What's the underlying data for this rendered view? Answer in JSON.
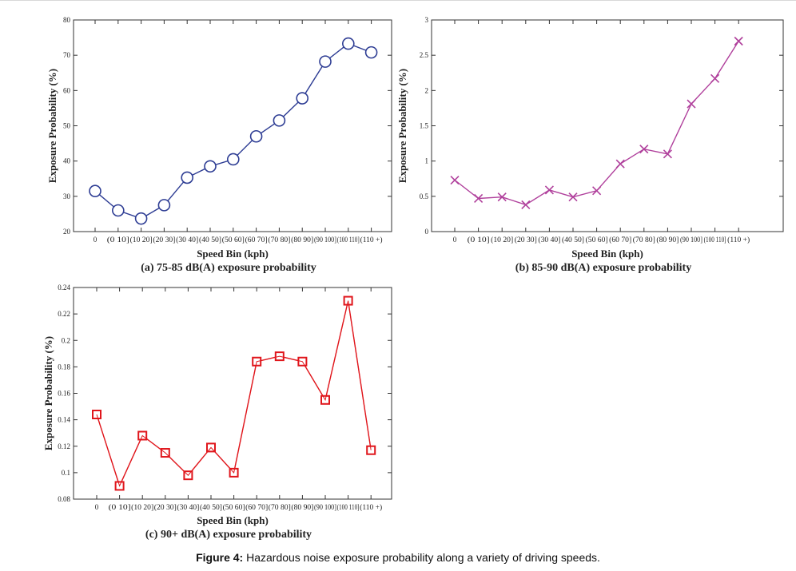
{
  "figure": {
    "caption_label": "Figure 4:",
    "caption_text": " Hazardous noise exposure probability along a variety of driving speeds."
  },
  "chart_data": [
    {
      "type": "line",
      "subcaption": "(a) 75-85 dB(A) exposure probability",
      "xlabel": "Speed Bin (kph)",
      "ylabel": "Exposure Probability (%)",
      "categories": [
        "0",
        "(0 10]",
        "(10 20]",
        "(20 30]",
        "(30 40]",
        "(40 50]",
        "(50 60]",
        "(60 70]",
        "(70 80]",
        "(80 90]",
        "(90 100]",
        "(100 110]",
        "(110 +)"
      ],
      "values": [
        31.5,
        26,
        23.7,
        27.5,
        35.3,
        38.5,
        40.5,
        47,
        51.5,
        57.8,
        68.2,
        73.3,
        70.8
      ],
      "ylim": [
        20,
        80
      ],
      "yticks": [
        "20",
        "30",
        "40",
        "50",
        "60",
        "70",
        "80"
      ],
      "ytick_values": [
        20,
        30,
        40,
        50,
        60,
        70,
        80
      ],
      "marker": "circle",
      "color": "#2e3d94"
    },
    {
      "type": "line",
      "subcaption": "(b) 85-90 dB(A) exposure probability",
      "xlabel": "Speed Bin (kph)",
      "ylabel": "Exposure Probability (%)",
      "categories": [
        "0",
        "(0 10]",
        "(10 20]",
        "(20 30]",
        "(30 40]",
        "(40 50]",
        "(50 60]",
        "(60 70]",
        "(70 80]",
        "(80 90]",
        "(90 100]",
        "(100 110]",
        "(110 +)"
      ],
      "values": [
        0.73,
        0.47,
        0.49,
        0.38,
        0.59,
        0.49,
        0.58,
        0.96,
        1.17,
        1.1,
        1.81,
        2.17,
        2.7
      ],
      "ylim": [
        0,
        3
      ],
      "yticks": [
        "0",
        "0.5",
        "1",
        "1.5",
        "2",
        "2.5",
        "3"
      ],
      "ytick_values": [
        0,
        0.5,
        1,
        1.5,
        2,
        2.5,
        3
      ],
      "marker": "x",
      "color": "#b0409c"
    },
    {
      "type": "line",
      "subcaption": "(c) 90+ dB(A) exposure probability",
      "xlabel": "Speed Bin (kph)",
      "ylabel": "Exposure Probability (%)",
      "categories": [
        "0",
        "(0 10]",
        "(10 20]",
        "(20 30]",
        "(30 40]",
        "(40 50]",
        "(50 60]",
        "(60 70]",
        "(70 80]",
        "(80 90]",
        "(90 100]",
        "(100 110]",
        "(110 +)"
      ],
      "values": [
        0.144,
        0.09,
        0.128,
        0.115,
        0.098,
        0.119,
        0.1,
        0.184,
        0.188,
        0.184,
        0.155,
        0.23,
        0.117
      ],
      "ylim": [
        0.08,
        0.24
      ],
      "yticks": [
        "0.08",
        "0.1",
        "0.12",
        "0.14",
        "0.16",
        "0.18",
        "0.2",
        "0.22",
        "0.24"
      ],
      "ytick_values": [
        0.08,
        0.1,
        0.12,
        0.14,
        0.16,
        0.18,
        0.2,
        0.22,
        0.24
      ],
      "marker": "square",
      "color": "#e0161c"
    }
  ]
}
